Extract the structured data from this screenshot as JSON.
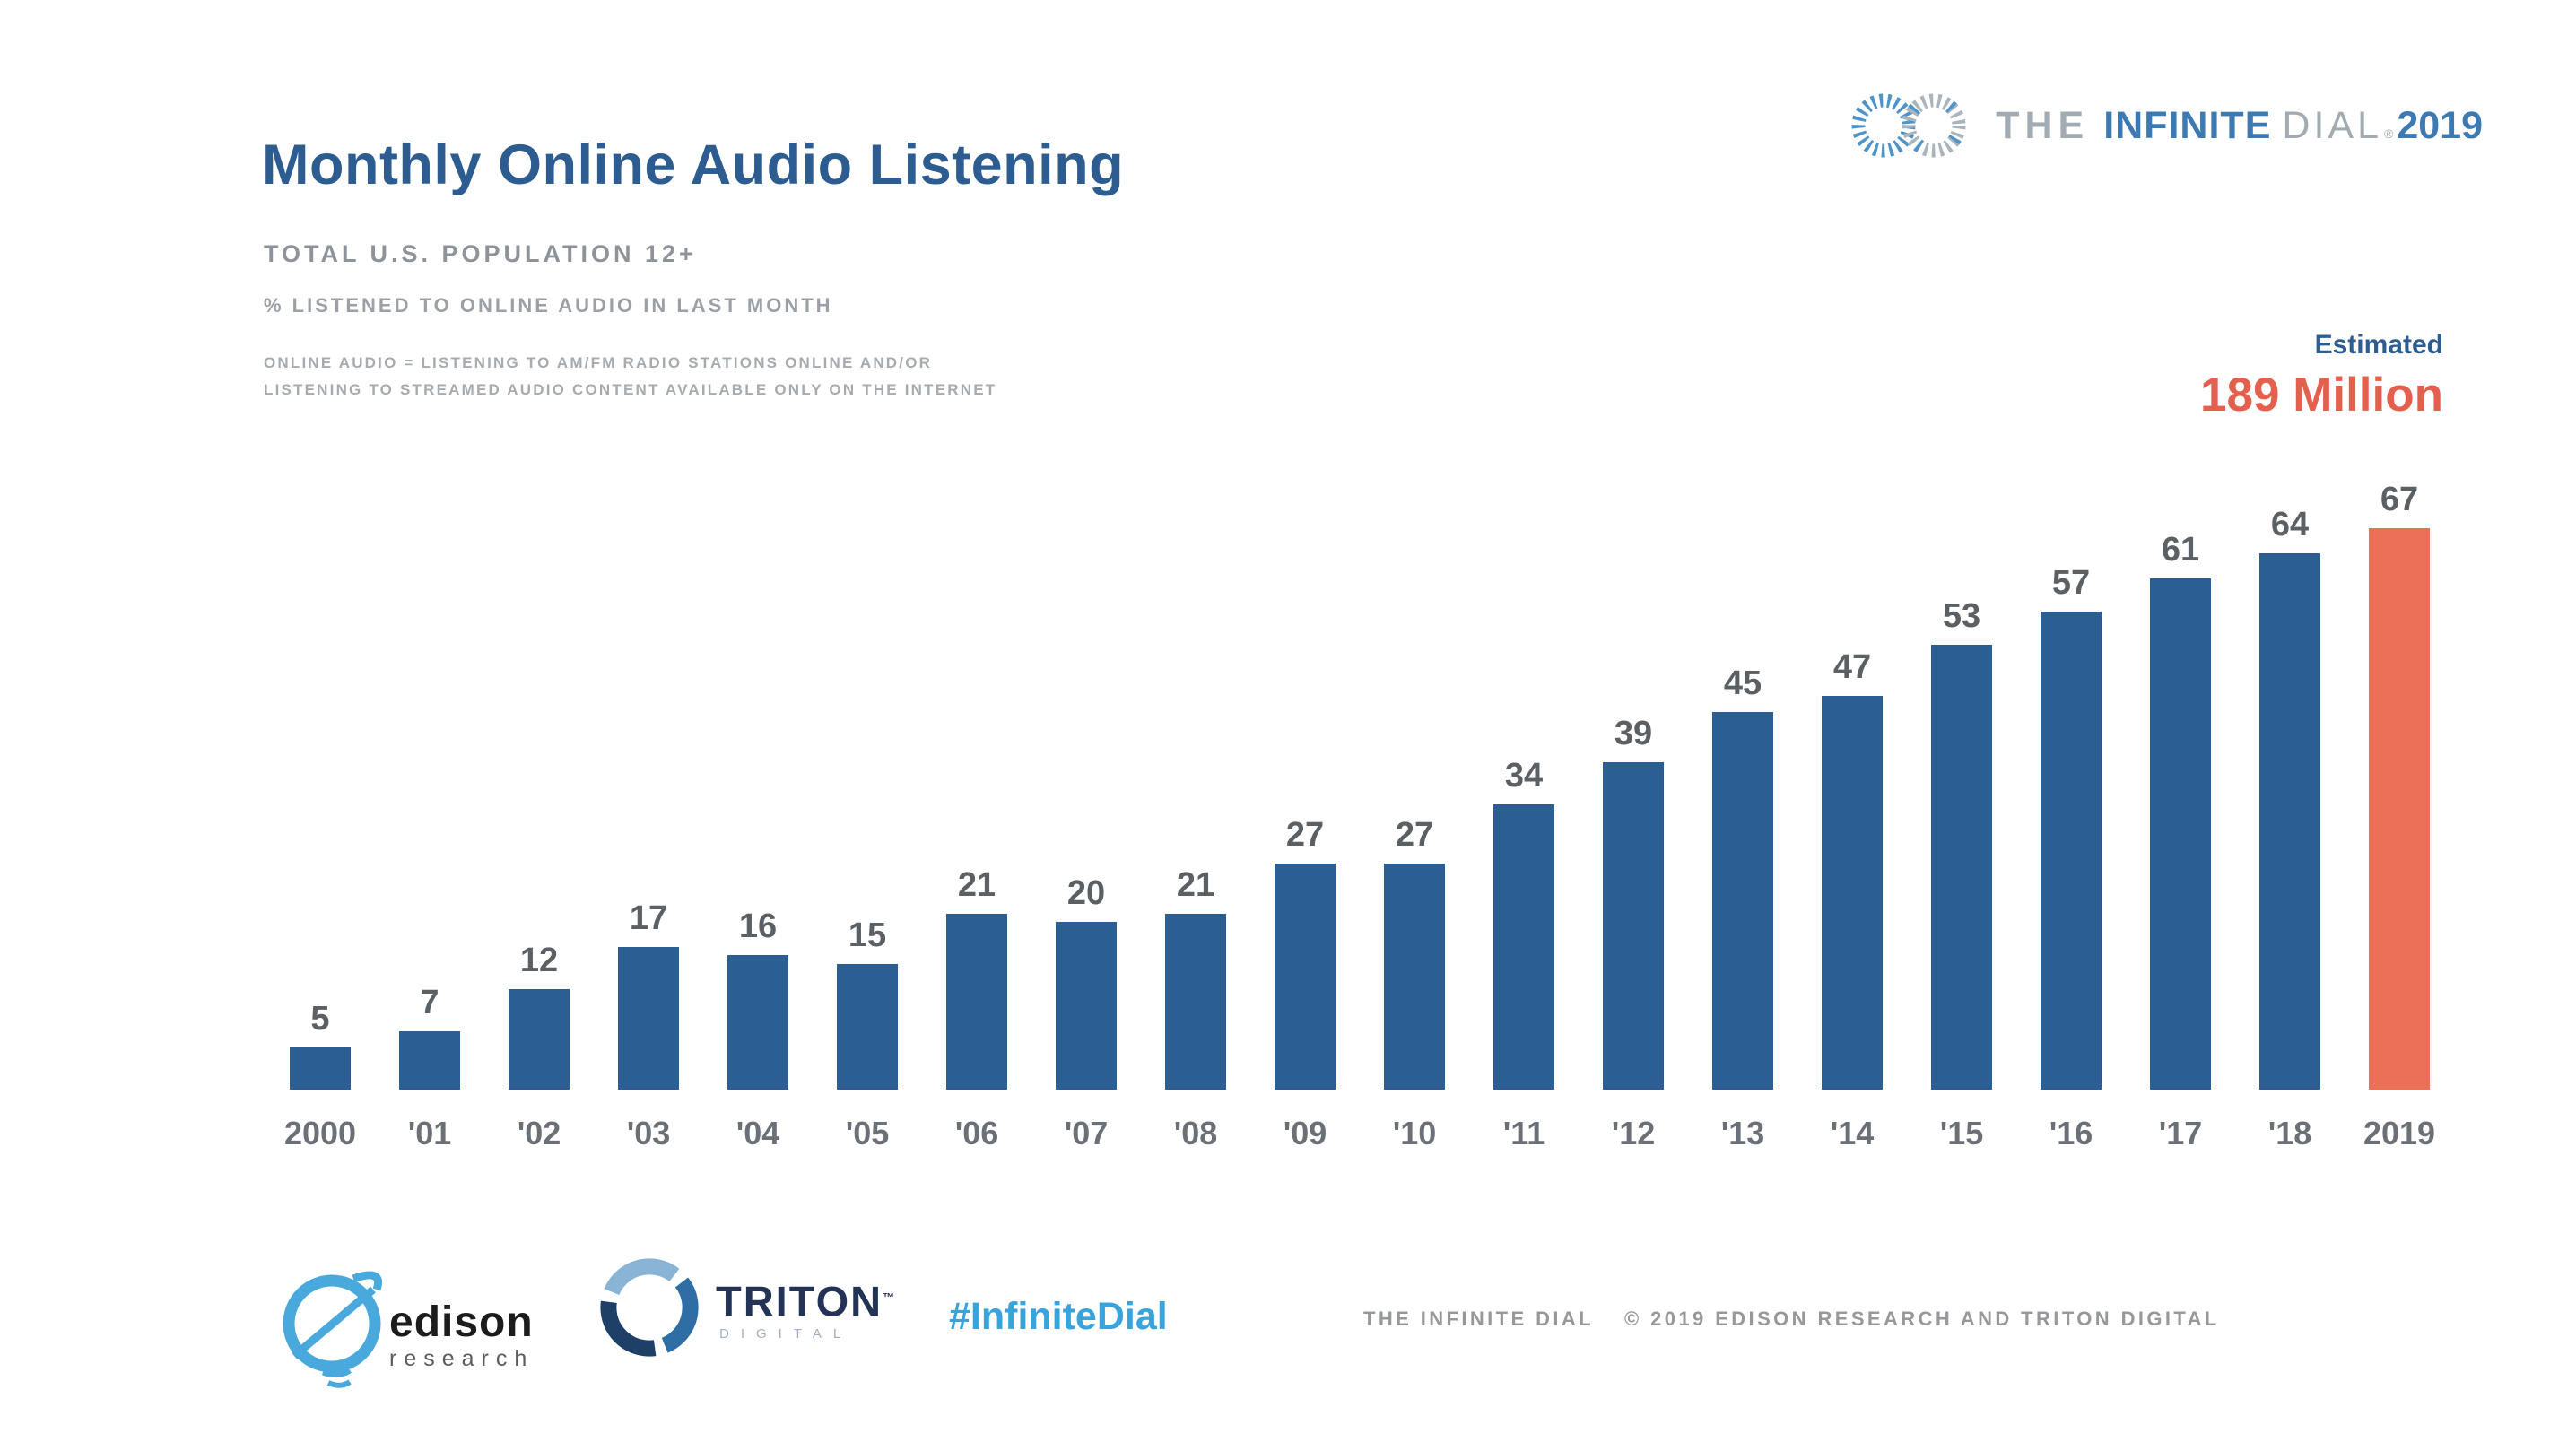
{
  "header": {
    "title": "Monthly Online Audio Listening",
    "subtitle": "TOTAL U.S. POPULATION 12+",
    "measure_note": "% LISTENED TO ONLINE AUDIO IN LAST MONTH",
    "definition_line1": "ONLINE AUDIO = LISTENING TO AM/FM RADIO STATIONS ONLINE AND/OR",
    "definition_line2": "LISTENING TO STREAMED AUDIO CONTENT AVAILABLE ONLY ON THE INTERNET"
  },
  "brand": {
    "the": "THE",
    "infinite": "INFINITE",
    "dial": "DIAL",
    "reg": "®",
    "year": "2019"
  },
  "annotation": {
    "label": "Estimated",
    "value": "189 Million"
  },
  "chart_data": {
    "type": "bar",
    "title": "Monthly Online Audio Listening",
    "xlabel": "",
    "ylabel": "% listened to online audio in last month",
    "categories": [
      "2000",
      "'01",
      "'02",
      "'03",
      "'04",
      "'05",
      "'06",
      "'07",
      "'08",
      "'09",
      "'10",
      "'11",
      "'12",
      "'13",
      "'14",
      "'15",
      "'16",
      "'17",
      "'18",
      "2019"
    ],
    "values": [
      5,
      7,
      12,
      17,
      16,
      15,
      21,
      20,
      21,
      27,
      27,
      34,
      39,
      45,
      47,
      53,
      57,
      61,
      64,
      67
    ],
    "highlight_index": 19,
    "highlight_annotation": "Estimated 189 Million",
    "bar_color": "#2b5f94",
    "highlight_color": "#ec6f58",
    "ylim": [
      0,
      70
    ],
    "grid": false,
    "legend": false,
    "value_labels": true
  },
  "footer": {
    "edison_name": "edison",
    "edison_sub": "research",
    "triton_name": "TRITON",
    "triton_tm": "™",
    "triton_sub": "DIGITAL",
    "hashtag": "#InfiniteDial",
    "copyright_left": "THE INFINITE DIAL",
    "copyright_right": "© 2019 EDISON RESEARCH AND TRITON DIGITAL"
  },
  "colors": {
    "title_blue": "#2d5c90",
    "bar_blue": "#2b5f94",
    "highlight_orange": "#ec6f58",
    "estimated_text_orange": "#e4604e",
    "hashtag_blue": "#39a3db",
    "muted_gray": "#9aa0a6"
  }
}
